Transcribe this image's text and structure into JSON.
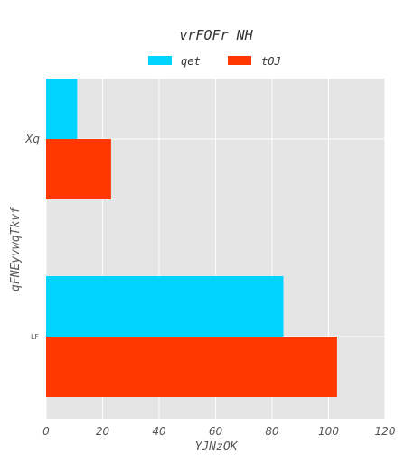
{
  "chart_data": {
    "type": "bar",
    "orientation": "horizontal",
    "title": "vrFOFr NH",
    "xlabel": "YJNzOK",
    "ylabel": "qFNEyvwqTkvf",
    "categories": [
      "Xq",
      "LF"
    ],
    "series": [
      {
        "name": "qet",
        "values": [
          11,
          84
        ],
        "color": "#00d4ff"
      },
      {
        "name": "tOJ",
        "values": [
          23,
          103
        ],
        "color": "#ff3700"
      }
    ],
    "xlim": [
      0,
      120
    ],
    "xticks": [
      0,
      20,
      40,
      60,
      80,
      100,
      120
    ],
    "grid": true,
    "legend_position": "top-center",
    "background": "#e5e5e5"
  }
}
